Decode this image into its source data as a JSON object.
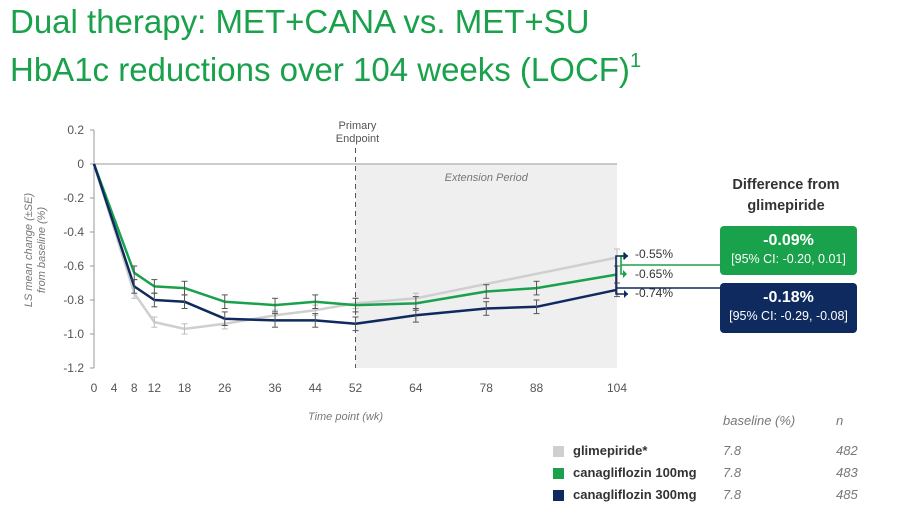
{
  "header": {
    "title_line1": "Dual therapy: MET+CANA vs. MET+SU",
    "title_line2": "HbA1c reductions over 104 weeks (LOCF)",
    "title_superscript": "1"
  },
  "chart_data": {
    "type": "line",
    "xlabel": "Time point (wk)",
    "ylabel": "LS mean change (±SE) from baseline (%)",
    "x": [
      0,
      4,
      8,
      12,
      18,
      26,
      36,
      44,
      52,
      64,
      78,
      88,
      104
    ],
    "x_ticks": [
      "0",
      "4",
      "8",
      "12",
      "18",
      "26",
      "36",
      "44",
      "52",
      "64",
      "78",
      "88",
      "104"
    ],
    "y_ticks": [
      "0.2",
      "0",
      "-0.2",
      "-0.4",
      "-0.6",
      "-0.8",
      "-1.0",
      "-1.2"
    ],
    "xlim": [
      0,
      104
    ],
    "ylim": [
      -1.2,
      0.2
    ],
    "grid": false,
    "primary_endpoint_label": "Primary\nEndpoint",
    "primary_endpoint_x": 52,
    "extension_label": "Extension Period",
    "extension_range": [
      52,
      104
    ],
    "series": [
      {
        "name": "glimepiride*",
        "color": "#cfcfcf",
        "x": [
          0,
          8,
          12,
          18,
          26,
          36,
          44,
          52,
          64,
          104
        ],
        "values": [
          0,
          -0.76,
          -0.93,
          -0.97,
          -0.94,
          -0.89,
          -0.86,
          -0.82,
          -0.79,
          -0.55
        ],
        "se": [
          0,
          0.03,
          0.03,
          0.03,
          0.03,
          0.03,
          0.03,
          0.03,
          0.03,
          0.05
        ]
      },
      {
        "name": "canagliflozin 100mg",
        "color": "#1aa14b",
        "x": [
          0,
          8,
          12,
          18,
          26,
          36,
          44,
          52,
          64,
          78,
          88,
          104
        ],
        "values": [
          0,
          -0.64,
          -0.72,
          -0.73,
          -0.81,
          -0.83,
          -0.81,
          -0.83,
          -0.82,
          -0.75,
          -0.73,
          -0.65
        ],
        "se": [
          0,
          0.04,
          0.04,
          0.04,
          0.04,
          0.04,
          0.04,
          0.04,
          0.04,
          0.04,
          0.04,
          0.05
        ]
      },
      {
        "name": "canagliflozin 300mg",
        "color": "#0e2a5e",
        "x": [
          0,
          8,
          12,
          18,
          26,
          36,
          44,
          52,
          64,
          78,
          88,
          104
        ],
        "values": [
          0,
          -0.72,
          -0.8,
          -0.81,
          -0.91,
          -0.92,
          -0.92,
          -0.94,
          -0.89,
          -0.85,
          -0.84,
          -0.74
        ],
        "se": [
          0,
          0.04,
          0.04,
          0.04,
          0.04,
          0.04,
          0.04,
          0.04,
          0.04,
          0.04,
          0.04,
          0.04
        ]
      }
    ],
    "end_labels": [
      "-0.55%",
      "-0.65%",
      "-0.74%"
    ]
  },
  "difference": {
    "heading": "Difference from glimepiride",
    "cana100": {
      "value": "-0.09%",
      "ci": "[95% CI: -0.20, 0.01]"
    },
    "cana300": {
      "value": "-0.18%",
      "ci": "[95% CI: -0.29, -0.08]"
    }
  },
  "legend": {
    "col_baseline": "baseline (%)",
    "col_n": "n",
    "rows": [
      {
        "name": "glimepiride*",
        "color": "#cfcfcf",
        "baseline": "7.8",
        "n": "482"
      },
      {
        "name": "canagliflozin 100mg",
        "color": "#1aa14b",
        "baseline": "7.8",
        "n": "483"
      },
      {
        "name": "canagliflozin 300mg",
        "color": "#0e2a5e",
        "baseline": "7.8",
        "n": "485"
      }
    ]
  }
}
